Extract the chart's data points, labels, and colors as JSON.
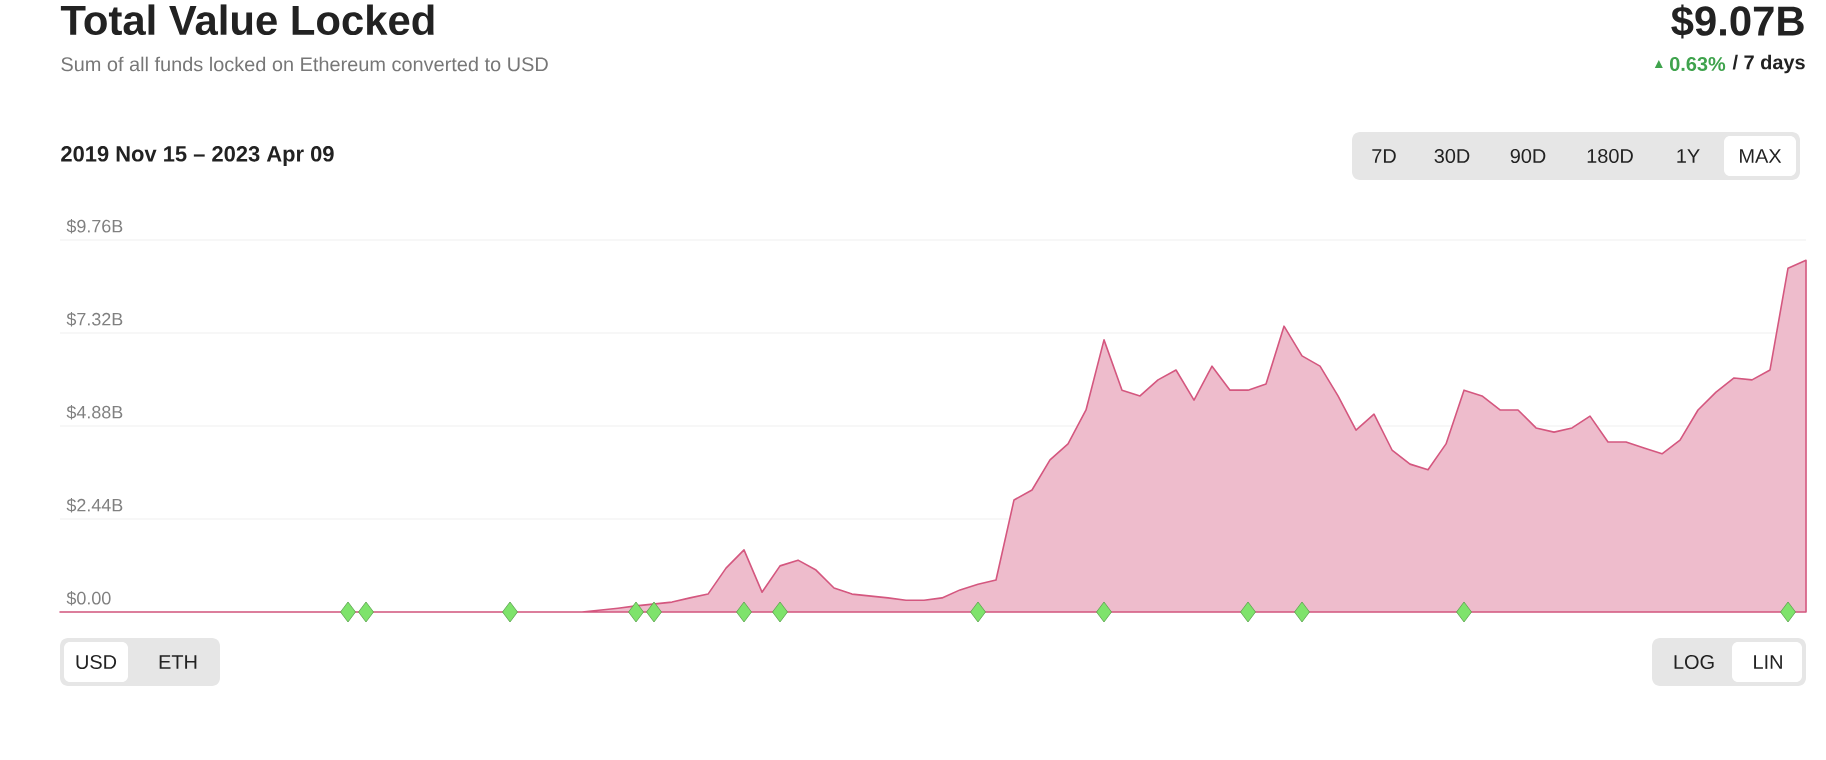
{
  "chart_data": {
    "type": "area",
    "title": "Total Value Locked",
    "subtitle": "Sum of all funds locked on Ethereum converted to USD",
    "annotations": [
      "$9.07B",
      "0.63%",
      "/ 7 days",
      "2019 Nov 15 – 2023 Apr 09",
      "7D",
      "30D",
      "90D",
      "180D",
      "1Y",
      "MAX",
      "USD",
      "ETH",
      "LOG",
      "LIN"
    ],
    "categories": [
      null,
      null,
      null,
      null,
      null,
      null,
      null,
      null,
      null,
      null,
      null,
      null,
      null,
      null,
      null,
      null,
      null,
      null,
      null,
      null,
      null,
      null,
      null,
      null,
      null,
      null,
      null,
      null,
      null,
      null,
      null,
      null,
      null,
      null,
      null,
      null,
      null,
      null,
      null,
      null,
      null,
      null,
      null,
      null,
      null,
      null,
      null,
      null,
      null,
      null,
      null,
      null,
      null,
      null,
      null,
      null,
      null,
      null,
      null,
      null,
      null,
      null,
      null,
      null,
      null,
      null,
      null,
      null,
      null,
      null,
      null,
      null,
      null,
      null,
      null,
      null,
      null,
      null,
      null,
      null,
      null,
      null,
      null,
      null,
      null,
      null,
      null,
      null,
      null,
      null,
      null,
      null,
      null,
      null,
      null,
      null,
      null,
      null
    ],
    "series": [
      {
        "color": "#d4577f",
        "values": [
          0,
          0,
          0,
          0,
          0,
          0,
          0,
          0,
          0,
          0,
          0,
          0,
          0,
          0,
          0,
          0,
          0,
          0,
          0,
          0,
          0,
          0,
          0,
          0,
          0,
          0,
          0,
          0,
          0,
          0,
          0.05,
          0.1,
          0.16,
          0.21,
          0.26,
          0.37,
          0.47,
          1.15,
          1.63,
          0.52,
          1.21,
          1.36,
          1.1,
          0.63,
          0.47,
          0.42,
          0.37,
          0.31,
          0.31,
          0.37,
          0.58,
          0.73,
          0.84,
          2.94,
          3.2,
          3.99,
          4.41,
          5.3,
          7.14,
          5.82,
          5.67,
          6.09,
          6.35,
          5.56,
          6.45,
          5.82,
          5.82,
          5.98,
          7.5,
          6.72,
          6.45,
          5.67,
          4.77,
          5.19,
          4.25,
          3.88,
          3.73,
          4.41,
          5.82,
          5.67,
          5.3,
          5.3,
          4.83,
          4.72,
          4.83,
          5.14,
          4.46,
          4.46,
          4.3,
          4.15,
          4.51,
          5.3,
          5.77,
          6.14,
          6.09,
          6.35,
          9.02,
          9.23
        ]
      },
      {
        "type": "scatter",
        "color": "#7ee36b",
        "marker": "diamond",
        "values": [
          null,
          null,
          null,
          null,
          null,
          null,
          null,
          null,
          null,
          null,
          null,
          null,
          null,
          null,
          null,
          null,
          0,
          0,
          null,
          null,
          null,
          null,
          null,
          null,
          null,
          0,
          null,
          null,
          null,
          null,
          null,
          null,
          0,
          0,
          null,
          null,
          null,
          null,
          0,
          null,
          0,
          null,
          null,
          null,
          null,
          null,
          null,
          null,
          null,
          null,
          null,
          0,
          null,
          null,
          null,
          null,
          null,
          null,
          0,
          null,
          null,
          null,
          null,
          null,
          null,
          null,
          0,
          null,
          null,
          0,
          null,
          null,
          null,
          null,
          null,
          null,
          null,
          null,
          0,
          null,
          null,
          null,
          null,
          null,
          null,
          null,
          null,
          null,
          null,
          null,
          null,
          null,
          null,
          null,
          null,
          null,
          0,
          null
        ]
      }
    ],
    "ylim": [
      0,
      9.76
    ],
    "yticks": [
      {
        "value": 0,
        "label": "$0.00"
      },
      {
        "value": 2.44,
        "label": "$2.44B"
      },
      {
        "value": 4.88,
        "label": "$4.88B"
      },
      {
        "value": 7.32,
        "label": "$7.32B"
      },
      {
        "value": 9.76,
        "label": "$9.76B"
      }
    ],
    "grid": "y"
  }
}
